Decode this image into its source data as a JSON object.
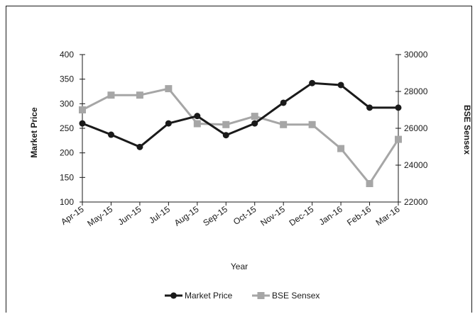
{
  "chart_data": {
    "type": "line",
    "xlabel": "Year",
    "ylabel_left": "Market Price",
    "ylabel_right": "BSE Sensex",
    "categories": [
      "Apr-15",
      "May-15",
      "Jun-15",
      "Jul-15",
      "Aug-15",
      "Sep-15",
      "Oct-15",
      "Nov-15",
      "Dec-15",
      "Jan-16",
      "Feb-16",
      "Mar-16"
    ],
    "ylim_left": [
      100,
      400
    ],
    "yticks_left": [
      "100",
      "150",
      "200",
      "250",
      "300",
      "350",
      "400"
    ],
    "ylim_right": [
      22000,
      30000
    ],
    "yticks_right": [
      "22000",
      "24000",
      "26000",
      "28000",
      "30000"
    ],
    "legend_position": "bottom",
    "series": [
      {
        "name": "Market Price",
        "axis": "left",
        "color": "#1a1a1a",
        "marker": "circle",
        "values": [
          260,
          237,
          212,
          260,
          275,
          236,
          260,
          302,
          342,
          338,
          292,
          292
        ]
      },
      {
        "name": "BSE Sensex",
        "axis": "right",
        "color": "#a6a6a6",
        "marker": "square",
        "values": [
          27000,
          27800,
          27800,
          28150,
          26250,
          26200,
          26650,
          26200,
          26200,
          24900,
          23000,
          25400
        ]
      }
    ]
  }
}
